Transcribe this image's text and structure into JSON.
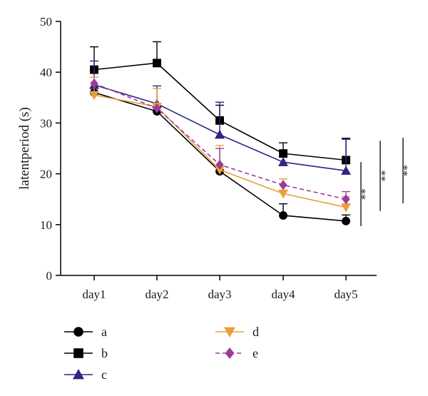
{
  "chart_data": {
    "type": "line",
    "title": "",
    "xlabel": "",
    "ylabel": "latentperiod (s)",
    "categories": [
      "day1",
      "day2",
      "day3",
      "day4",
      "day5"
    ],
    "ylim": [
      0,
      50
    ],
    "yticks": [
      0,
      10,
      20,
      30,
      40,
      50
    ],
    "grid": false,
    "legend_position": "bottom-left",
    "series": [
      {
        "name": "a",
        "values": [
          36.0,
          32.3,
          20.5,
          11.8,
          10.7
        ],
        "errors": [
          0,
          0,
          0,
          2.3,
          1.2
        ],
        "color": "#000000",
        "marker": "circle",
        "dashed": false
      },
      {
        "name": "b",
        "values": [
          40.5,
          41.8,
          30.5,
          24.0,
          22.7
        ],
        "errors": [
          4.5,
          4.2,
          3.0,
          2.1,
          4.3
        ],
        "color": "#000000",
        "marker": "square",
        "dashed": false
      },
      {
        "name": "c",
        "values": [
          37.5,
          33.8,
          27.7,
          22.3,
          20.6
        ],
        "errors": [
          4.7,
          3.5,
          6.4,
          0,
          6.2
        ],
        "color": "#2e2583",
        "marker": "triangle-up",
        "dashed": false
      },
      {
        "name": "d",
        "values": [
          35.5,
          33.2,
          20.8,
          16.1,
          13.4
        ],
        "errors": [
          3.5,
          3.6,
          4.8,
          2.9,
          2.1
        ],
        "color": "#e8a03c",
        "marker": "triangle-down",
        "dashed": false
      },
      {
        "name": "e",
        "values": [
          37.8,
          32.9,
          21.8,
          17.8,
          15.0
        ],
        "errors": [
          0,
          0,
          3.2,
          0,
          1.5
        ],
        "color": "#9b3a9c",
        "marker": "diamond",
        "dashed": true
      }
    ],
    "annotations": [
      "**",
      "**",
      "**"
    ]
  }
}
